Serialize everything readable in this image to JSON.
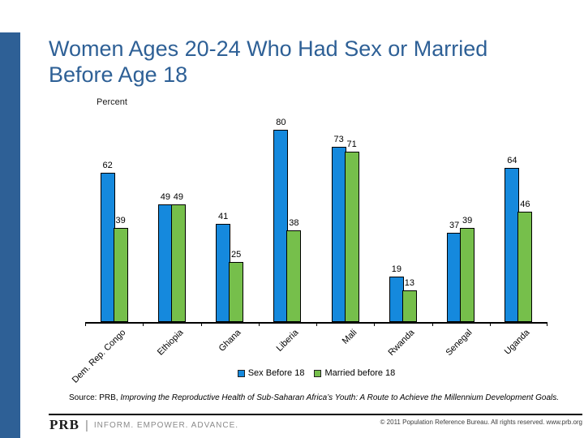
{
  "title": "Women Ages 20-24 Who Had Sex or Married Before Age 18",
  "chart_data": {
    "type": "bar",
    "axis_label": "Percent",
    "categories": [
      "Dem. Rep. Congo",
      "Ethiopia",
      "Ghana",
      "Liberia",
      "Mali",
      "Rwanda",
      "Senegal",
      "Uganda"
    ],
    "series": [
      {
        "name": "Sex Before 18",
        "color": "#1589dd",
        "values": [
          62,
          49,
          41,
          80,
          73,
          19,
          37,
          64
        ]
      },
      {
        "name": "Married before 18",
        "color": "#76bf4b",
        "values": [
          39,
          49,
          25,
          38,
          71,
          13,
          39,
          46
        ]
      }
    ],
    "ylabel": "Percent",
    "ylim": [
      0,
      88
    ],
    "grid": false,
    "legend_position": "bottom",
    "data_labels": true
  },
  "source": {
    "prefix": "Source: PRB, ",
    "citation": "Improving the Reproductive Health of Sub-Saharan Africa’s Youth: A Route to Achieve the Millennium Development Goals."
  },
  "footer": {
    "logo": "PRB",
    "separator": "|",
    "tagline": "INFORM. EMPOWER. ADVANCE.",
    "copyright": "© 2011 Population Reference Bureau. All rights reserved. www.prb.org"
  },
  "colors": {
    "accent_blue": "#2e6096",
    "bar_blue": "#1589dd",
    "bar_green": "#76bf4b",
    "bar_border": "#000000"
  }
}
